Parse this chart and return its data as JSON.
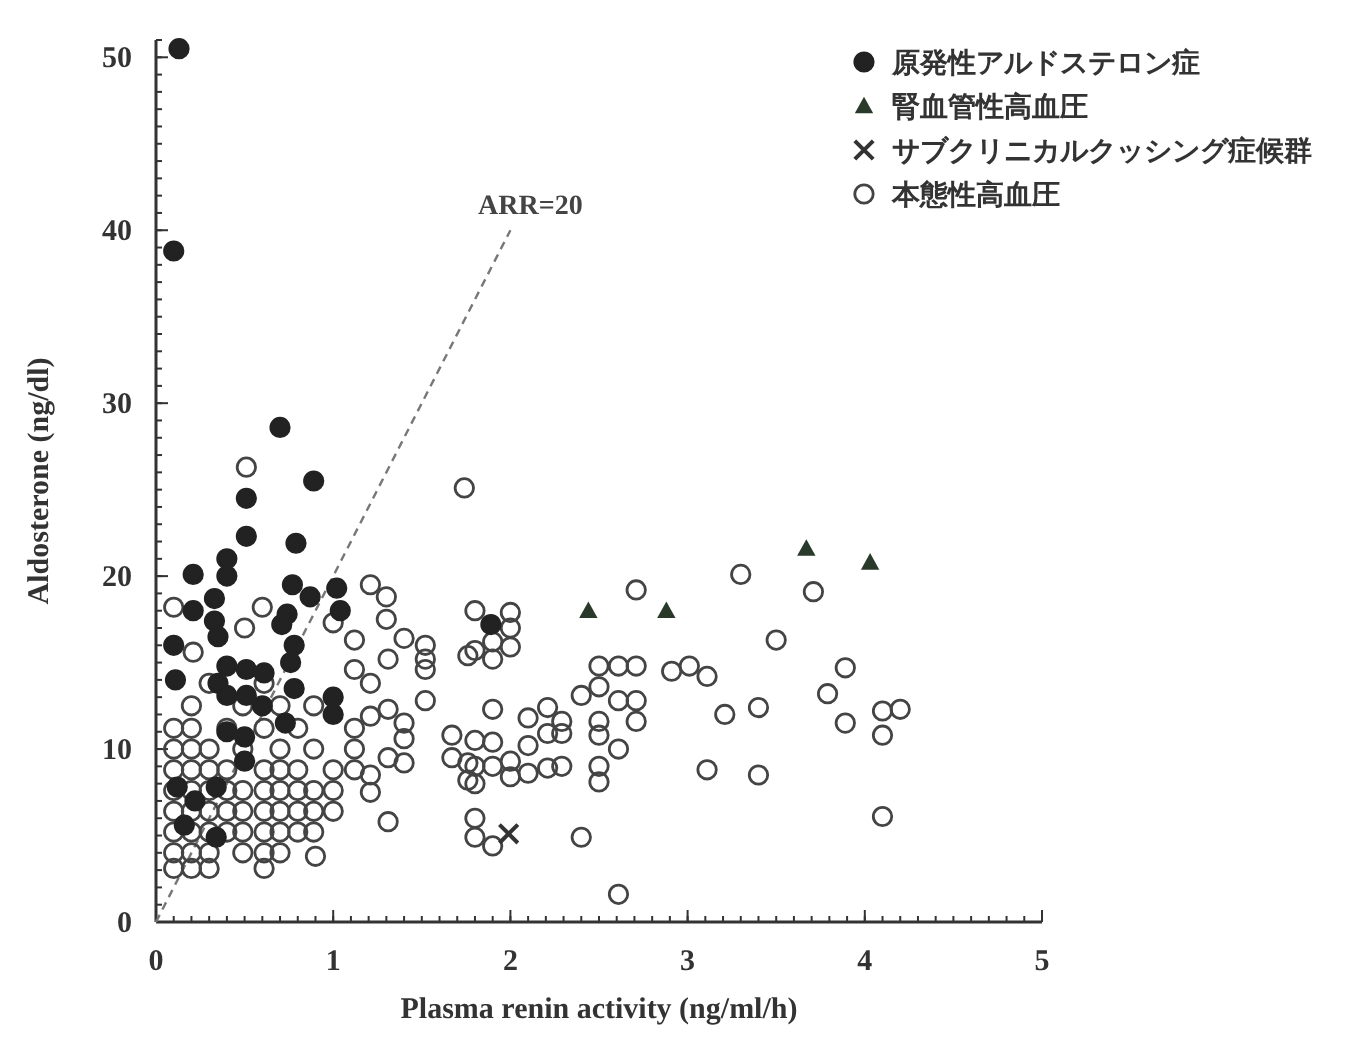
{
  "chart_data": {
    "type": "scatter",
    "xlabel": "Plasma renin activity (ng/ml/h)",
    "ylabel": "Aldosterone (ng/dl)",
    "xlim": [
      0,
      5
    ],
    "xticks": [
      0,
      1,
      2,
      3,
      4,
      5
    ],
    "ylim": [
      0,
      51
    ],
    "yticks": [
      0,
      10,
      20,
      30,
      40,
      50
    ],
    "grid": false,
    "legend": "top right",
    "annotations": [
      "ARR=20"
    ],
    "series": [
      {
        "name": "原発性アルドステロン症",
        "color": "#222222",
        "marker": "circle",
        "x": [
          0.13,
          0.1,
          0.7,
          0.89,
          0.51,
          0.51,
          0.79,
          0.4,
          0.21,
          0.4,
          0.77,
          0.87,
          1.02,
          0.33,
          0.21,
          1.04,
          0.74,
          0.33,
          0.71,
          0.35,
          0.1,
          0.78,
          0.11,
          0.4,
          0.51,
          0.61,
          0.76,
          0.35,
          0.4,
          0.51,
          0.6,
          0.78,
          1.0,
          1.0,
          0.4,
          0.5,
          0.73,
          0.5,
          0.12,
          0.22,
          0.34,
          0.16,
          0.34,
          1.89
        ],
        "values": [
          50.5,
          38.8,
          28.6,
          25.5,
          24.5,
          22.3,
          21.9,
          21.0,
          20.1,
          20.0,
          19.5,
          18.8,
          19.3,
          18.7,
          18.0,
          18.0,
          17.8,
          17.4,
          17.2,
          16.5,
          16.0,
          16.0,
          14.0,
          14.8,
          14.6,
          14.4,
          15.0,
          13.8,
          13.1,
          13.1,
          12.5,
          13.5,
          13.0,
          12.0,
          11.0,
          10.7,
          11.5,
          9.3,
          7.8,
          7.0,
          7.8,
          5.6,
          4.9,
          17.2
        ]
      },
      {
        "name": "腎血管性高血圧",
        "color": "#2a3a2a",
        "marker": "triangle",
        "x": [
          2.44,
          2.88,
          3.67,
          4.03
        ],
        "values": [
          18.0,
          18.0,
          21.6,
          20.8
        ]
      },
      {
        "name": "サブクリニカルクッシング症候群",
        "color": "#333333",
        "marker": "cross",
        "x": [
          1.99
        ],
        "values": [
          5.1
        ]
      },
      {
        "name": "本態性高血圧",
        "color": "#444444",
        "marker": "circle",
        "x": [
          1.8,
          2.0,
          2.0,
          2.71,
          3.3,
          3.71,
          3.5,
          3.89,
          3.79,
          4.1,
          4.2,
          3.89,
          4.1,
          4.1,
          3.4,
          3.4,
          3.11,
          3.21,
          2.91,
          3.01,
          3.11,
          2.5,
          2.61,
          2.71,
          2.4,
          2.5,
          2.61,
          2.71,
          2.71,
          2.5,
          2.5,
          2.61,
          2.5,
          2.5,
          2.4,
          2.61,
          1.9,
          2.1,
          2.21,
          2.29,
          2.21,
          2.29,
          2.1,
          1.9,
          1.8,
          1.8,
          1.9,
          2.0,
          2.0,
          2.1,
          2.21,
          2.29,
          1.8,
          1.8,
          1.9,
          1.9,
          2.0,
          1.8,
          1.9,
          1.74,
          0.51,
          0.1,
          1.21,
          1.3,
          1.3,
          1.4,
          1.52,
          1.52,
          1.52,
          1.31,
          1.76,
          0.6,
          0.5,
          1.0,
          1.12,
          0.21,
          1.12,
          1.21,
          1.52,
          1.31,
          1.21,
          1.4,
          1.4,
          1.31,
          1.4,
          1.21,
          1.21,
          1.31,
          0.9,
          1.67,
          1.67,
          1.76,
          1.8,
          1.76,
          0.1,
          0.2,
          0.4,
          0.61,
          0.8,
          1.12,
          0.1,
          0.2,
          0.3,
          0.49,
          0.7,
          0.89,
          1.12,
          0.1,
          0.2,
          0.3,
          0.4,
          0.61,
          0.7,
          0.8,
          1.0,
          1.12,
          0.1,
          0.2,
          0.3,
          0.4,
          0.49,
          0.61,
          0.7,
          0.8,
          0.89,
          1.0,
          0.1,
          0.2,
          0.3,
          0.4,
          0.49,
          0.61,
          0.7,
          0.8,
          0.89,
          1.0,
          0.1,
          0.2,
          0.3,
          0.4,
          0.49,
          0.61,
          0.7,
          0.8,
          0.89,
          0.1,
          0.2,
          0.3,
          0.49,
          0.61,
          0.7,
          0.1,
          0.2,
          0.3,
          0.61,
          0.2,
          0.49,
          0.7,
          0.89,
          0.3,
          0.61
        ],
        "values": [
          18.0,
          17.9,
          17.0,
          19.2,
          20.1,
          19.1,
          16.3,
          14.7,
          13.2,
          12.2,
          12.3,
          11.5,
          10.8,
          6.1,
          12.4,
          8.5,
          8.8,
          12.0,
          14.5,
          14.8,
          14.2,
          14.8,
          14.8,
          14.8,
          13.1,
          13.6,
          12.8,
          12.8,
          11.6,
          11.6,
          10.8,
          10.0,
          9.0,
          8.1,
          4.9,
          1.6,
          12.3,
          11.8,
          12.4,
          11.6,
          10.9,
          10.9,
          10.2,
          10.4,
          10.5,
          9.0,
          9.0,
          9.3,
          8.4,
          8.6,
          8.9,
          9.0,
          8.0,
          4.9,
          4.4,
          16.2,
          15.9,
          15.7,
          15.2,
          25.1,
          26.3,
          18.2,
          19.5,
          18.8,
          17.5,
          16.4,
          16.0,
          15.2,
          14.6,
          15.2,
          15.4,
          18.2,
          17.0,
          17.3,
          16.3,
          15.6,
          14.6,
          13.8,
          12.8,
          12.3,
          11.9,
          11.5,
          10.6,
          9.5,
          9.2,
          8.5,
          7.5,
          5.8,
          3.8,
          10.8,
          9.5,
          9.2,
          6.0,
          8.2,
          11.2,
          11.2,
          11.2,
          11.2,
          11.2,
          11.2,
          10.0,
          10.0,
          10.0,
          10.0,
          10.0,
          10.0,
          10.0,
          8.8,
          8.8,
          8.8,
          8.8,
          8.8,
          8.8,
          8.8,
          8.8,
          8.8,
          7.6,
          7.6,
          7.6,
          7.6,
          7.6,
          7.6,
          7.6,
          7.6,
          7.6,
          7.6,
          6.4,
          6.4,
          6.4,
          6.4,
          6.4,
          6.4,
          6.4,
          6.4,
          6.4,
          6.4,
          5.2,
          5.2,
          5.2,
          5.2,
          5.2,
          5.2,
          5.2,
          5.2,
          5.2,
          4.0,
          4.0,
          4.0,
          4.0,
          4.0,
          4.0,
          3.1,
          3.1,
          3.1,
          3.1,
          12.5,
          12.5,
          12.5,
          12.5,
          13.8,
          13.8
        ]
      },
      {
        "type": "line",
        "color": "#777777",
        "line_style": "dashed",
        "marker": "none",
        "x": [
          0,
          2.0
        ],
        "values": [
          0,
          40
        ]
      }
    ]
  }
}
